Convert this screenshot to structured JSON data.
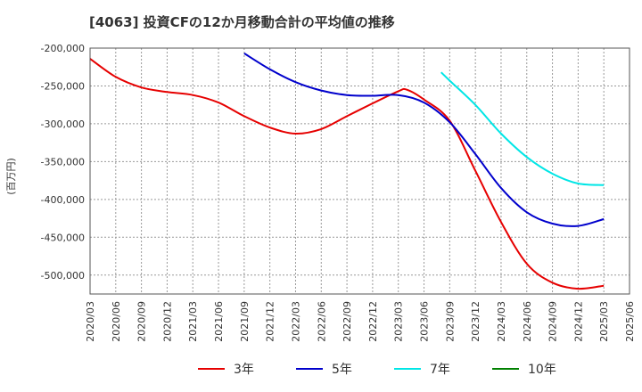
{
  "chart_data": {
    "type": "line",
    "title": "[4063]  投資CFの12か月移動合計の平均値の推移",
    "ylabel": "(百万円)",
    "xlabel": "",
    "ylim": [
      -525000,
      -200000
    ],
    "yticks": [
      -200000,
      -250000,
      -300000,
      -350000,
      -400000,
      -450000,
      -500000
    ],
    "ytick_labels": [
      "-200,000",
      "-250,000",
      "-300,000",
      "-350,000",
      "-400,000",
      "-450,000",
      "-500,000"
    ],
    "xlim": [
      "2020/03",
      "2025/06"
    ],
    "xtick_labels": [
      "2020/03",
      "2020/06",
      "2020/09",
      "2020/12",
      "2021/03",
      "2021/06",
      "2021/09",
      "2021/12",
      "2022/03",
      "2022/06",
      "2022/09",
      "2022/12",
      "2023/03",
      "2023/06",
      "2023/09",
      "2023/12",
      "2024/03",
      "2024/06",
      "2024/09",
      "2024/12",
      "2025/03",
      "2025/06"
    ],
    "grid": true,
    "legend_position": "bottom",
    "series": [
      {
        "name": "3年",
        "color": "#e60000",
        "x": [
          "2020/03",
          "2020/06",
          "2020/09",
          "2020/12",
          "2021/03",
          "2021/06",
          "2021/09",
          "2021/12",
          "2022/03",
          "2022/06",
          "2022/09",
          "2022/12",
          "2023/03",
          "2023/04",
          "2023/06",
          "2023/09",
          "2023/12",
          "2024/03",
          "2024/06",
          "2024/09",
          "2024/12",
          "2025/03"
        ],
        "values": [
          -214000,
          -238000,
          -252000,
          -258000,
          -262000,
          -272000,
          -290000,
          -305000,
          -313000,
          -307000,
          -290000,
          -273000,
          -257000,
          -255000,
          -268000,
          -296000,
          -362000,
          -430000,
          -485000,
          -510000,
          -518000,
          -514000
        ]
      },
      {
        "name": "5年",
        "color": "#0000cc",
        "x": [
          "2021/09",
          "2021/12",
          "2022/03",
          "2022/06",
          "2022/09",
          "2022/12",
          "2023/03",
          "2023/06",
          "2023/09",
          "2023/12",
          "2024/03",
          "2024/06",
          "2024/09",
          "2024/12",
          "2025/03"
        ],
        "values": [
          -207000,
          -228000,
          -245000,
          -256000,
          -262000,
          -263000,
          -262000,
          -272000,
          -298000,
          -340000,
          -385000,
          -417000,
          -432000,
          -435000,
          -426000
        ]
      },
      {
        "name": "7年",
        "color": "#00e6e6",
        "x": [
          "2023/08",
          "2023/09",
          "2023/12",
          "2024/03",
          "2024/06",
          "2024/09",
          "2024/12",
          "2025/03"
        ],
        "values": [
          -232000,
          -243000,
          -275000,
          -313000,
          -344000,
          -366000,
          -379000,
          -381000
        ]
      },
      {
        "name": "10年",
        "color": "#008000",
        "x": [],
        "values": []
      }
    ]
  }
}
